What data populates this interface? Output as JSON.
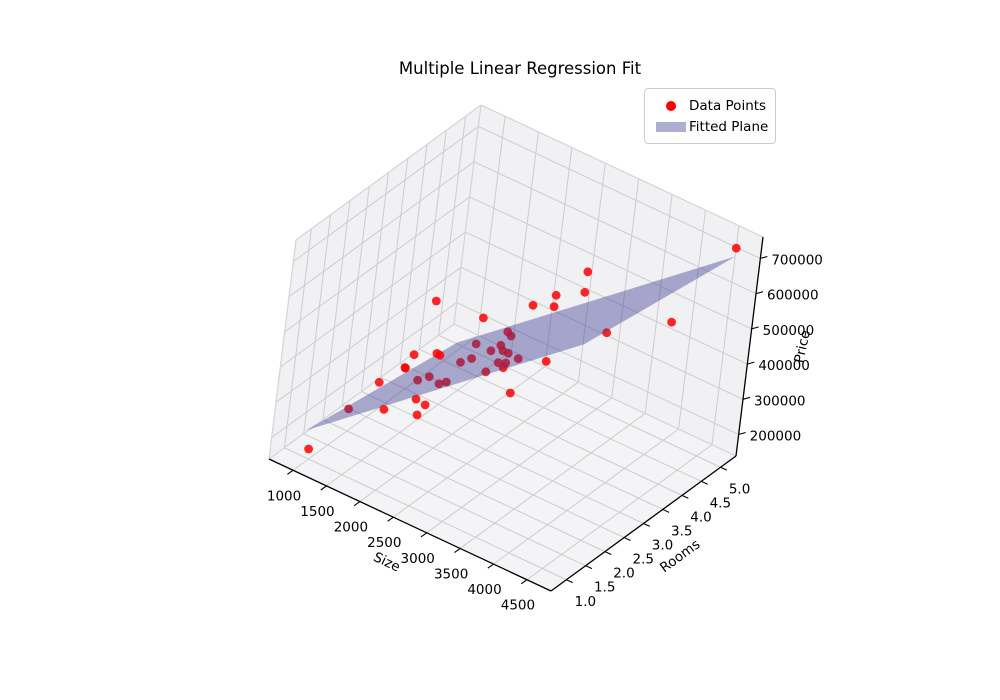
{
  "title": "Multiple Linear Regression Fit",
  "legend": {
    "items": [
      {
        "label": "Data Points",
        "marker": "dot",
        "color": "#ff0000"
      },
      {
        "label": "Fitted Plane",
        "marker": "patch",
        "color": "#aeaed2"
      }
    ]
  },
  "colors": {
    "point": "#ff0000",
    "point_opacity": 0.85,
    "plane_fill": "rgba(60,60,145,0.42)",
    "grid": "#cccccc",
    "pane_floor": "#f4f4f6",
    "pane_wall": "#f1f1f4",
    "pane_edge": "#d4d4d8",
    "spine": "#000000",
    "tick_text": "#000000"
  },
  "chart_data": {
    "type": "scatter",
    "projection": "3d",
    "title": "Multiple Linear Regression Fit",
    "grid": true,
    "legend_position": "upper right",
    "axes": {
      "size": {
        "label": "Size",
        "lim": [
          640,
          4860
        ],
        "ticks": [
          {
            "v": 1000,
            "label": "1000"
          },
          {
            "v": 1500,
            "label": "1500"
          },
          {
            "v": 2000,
            "label": "2000"
          },
          {
            "v": 2500,
            "label": "2500"
          },
          {
            "v": 3000,
            "label": "3000"
          },
          {
            "v": 3500,
            "label": "3500"
          },
          {
            "v": 4000,
            "label": "4000"
          },
          {
            "v": 4500,
            "label": "4500"
          }
        ]
      },
      "rooms": {
        "label": "Rooms",
        "lim": [
          0.6,
          5.4
        ],
        "ticks": [
          {
            "v": 1.0,
            "label": "1.0"
          },
          {
            "v": 1.5,
            "label": "1.5"
          },
          {
            "v": 2.0,
            "label": "2.0"
          },
          {
            "v": 2.5,
            "label": "2.5"
          },
          {
            "v": 3.0,
            "label": "3.0"
          },
          {
            "v": 3.5,
            "label": "3.5"
          },
          {
            "v": 4.0,
            "label": "4.0"
          },
          {
            "v": 4.5,
            "label": "4.5"
          },
          {
            "v": 5.0,
            "label": "5.0"
          }
        ]
      },
      "price": {
        "label": "Price",
        "lim": [
          139000,
          761000
        ],
        "ticks": [
          {
            "v": 200000,
            "label": "200000"
          },
          {
            "v": 300000,
            "label": "300000"
          },
          {
            "v": 400000,
            "label": "400000"
          },
          {
            "v": 500000,
            "label": "500000"
          },
          {
            "v": 600000,
            "label": "600000"
          },
          {
            "v": 700000,
            "label": "700000"
          }
        ]
      }
    },
    "plane": {
      "name": "Fitted Plane",
      "size_range": [
        920,
        4700
      ],
      "rooms_range": [
        1,
        5
      ],
      "price_at_origin": 213600,
      "origin": {
        "size": 920,
        "rooms": 1
      },
      "coef_size": 153.4,
      "coef_rooms": -17500
    },
    "points": [
      {
        "size": 985,
        "rooms": 1,
        "price": 166000,
        "occluded_by_plane": false
      },
      {
        "size": 1980,
        "rooms": 1,
        "price": 367000,
        "occluded_by_plane": false
      },
      {
        "size": 2460,
        "rooms": 1,
        "price": 394000,
        "occluded_by_plane": false
      },
      {
        "size": 3740,
        "rooms": 1,
        "price": 570000,
        "occluded_by_plane": false
      },
      {
        "size": 1370,
        "rooms": 2,
        "price": 310000,
        "occluded_by_plane": false
      },
      {
        "size": 1710,
        "rooms": 2,
        "price": 382000,
        "occluded_by_plane": false
      },
      {
        "size": 2060,
        "rooms": 2,
        "price": 307000,
        "occluded_by_plane": false
      },
      {
        "size": 1220,
        "rooms": 3,
        "price": 257000,
        "occluded_by_plane": false
      },
      {
        "size": 1320,
        "rooms": 3,
        "price": 304000,
        "occluded_by_plane": false
      },
      {
        "size": 1540,
        "rooms": 3,
        "price": 476000,
        "occluded_by_plane": false
      },
      {
        "size": 1640,
        "rooms": 3,
        "price": 336000,
        "occluded_by_plane": false
      },
      {
        "size": 1190,
        "rooms": 4,
        "price": 211000,
        "occluded_by_plane": false
      },
      {
        "size": 1740,
        "rooms": 4,
        "price": 366000,
        "occluded_by_plane": false
      },
      {
        "size": 2420,
        "rooms": 4,
        "price": 462000,
        "occluded_by_plane": false
      },
      {
        "size": 2720,
        "rooms": 4,
        "price": 485000,
        "occluded_by_plane": false
      },
      {
        "size": 2730,
        "rooms": 4,
        "price": 518000,
        "occluded_by_plane": false
      },
      {
        "size": 3130,
        "rooms": 4,
        "price": 562000,
        "occluded_by_plane": false
      },
      {
        "size": 4410,
        "rooms": 4,
        "price": 591000,
        "occluded_by_plane": false
      },
      {
        "size": 2640,
        "rooms": 5,
        "price": 497000,
        "occluded_by_plane": false
      },
      {
        "size": 4700,
        "rooms": 5,
        "price": 747000,
        "occluded_by_plane": false
      },
      {
        "size": 1480,
        "rooms": 1,
        "price": 324000,
        "occluded_by_plane": true
      },
      {
        "size": 1910,
        "rooms": 2,
        "price": 364000,
        "occluded_by_plane": true
      },
      {
        "size": 1920,
        "rooms": 2,
        "price": 311000,
        "occluded_by_plane": true
      },
      {
        "size": 2070,
        "rooms": 2,
        "price": 388000,
        "occluded_by_plane": true
      },
      {
        "size": 2220,
        "rooms": 2,
        "price": 381000,
        "occluded_by_plane": true
      },
      {
        "size": 2320,
        "rooms": 2,
        "price": 395000,
        "occluded_by_plane": true
      },
      {
        "size": 2860,
        "rooms": 2,
        "price": 472000,
        "occluded_by_plane": true
      },
      {
        "size": 3020,
        "rooms": 2,
        "price": 512000,
        "occluded_by_plane": true
      },
      {
        "size": 3100,
        "rooms": 2,
        "price": 505000,
        "occluded_by_plane": true
      },
      {
        "size": 1990,
        "rooms": 3,
        "price": 342000,
        "occluded_by_plane": true
      },
      {
        "size": 2140,
        "rooms": 3,
        "price": 366000,
        "occluded_by_plane": true
      },
      {
        "size": 2180,
        "rooms": 3,
        "price": 411000,
        "occluded_by_plane": true
      },
      {
        "size": 2400,
        "rooms": 3,
        "price": 411000,
        "occluded_by_plane": true
      },
      {
        "size": 2530,
        "rooms": 3,
        "price": 438000,
        "occluded_by_plane": true
      },
      {
        "size": 2570,
        "rooms": 3,
        "price": 426000,
        "occluded_by_plane": true
      },
      {
        "size": 2630,
        "rooms": 3,
        "price": 397000,
        "occluded_by_plane": true
      },
      {
        "size": 2650,
        "rooms": 3,
        "price": 426000,
        "occluded_by_plane": true
      },
      {
        "size": 2660,
        "rooms": 3,
        "price": 476000,
        "occluded_by_plane": true
      },
      {
        "size": 2800,
        "rooms": 3,
        "price": 424000,
        "occluded_by_plane": true
      },
      {
        "size": 3200,
        "rooms": 3,
        "price": 452000,
        "occluded_by_plane": true
      },
      {
        "size": 2110,
        "rooms": 4,
        "price": 359000,
        "occluded_by_plane": true
      },
      {
        "size": 3510,
        "rooms": 4,
        "price": 481000,
        "occluded_by_plane": true
      }
    ]
  }
}
